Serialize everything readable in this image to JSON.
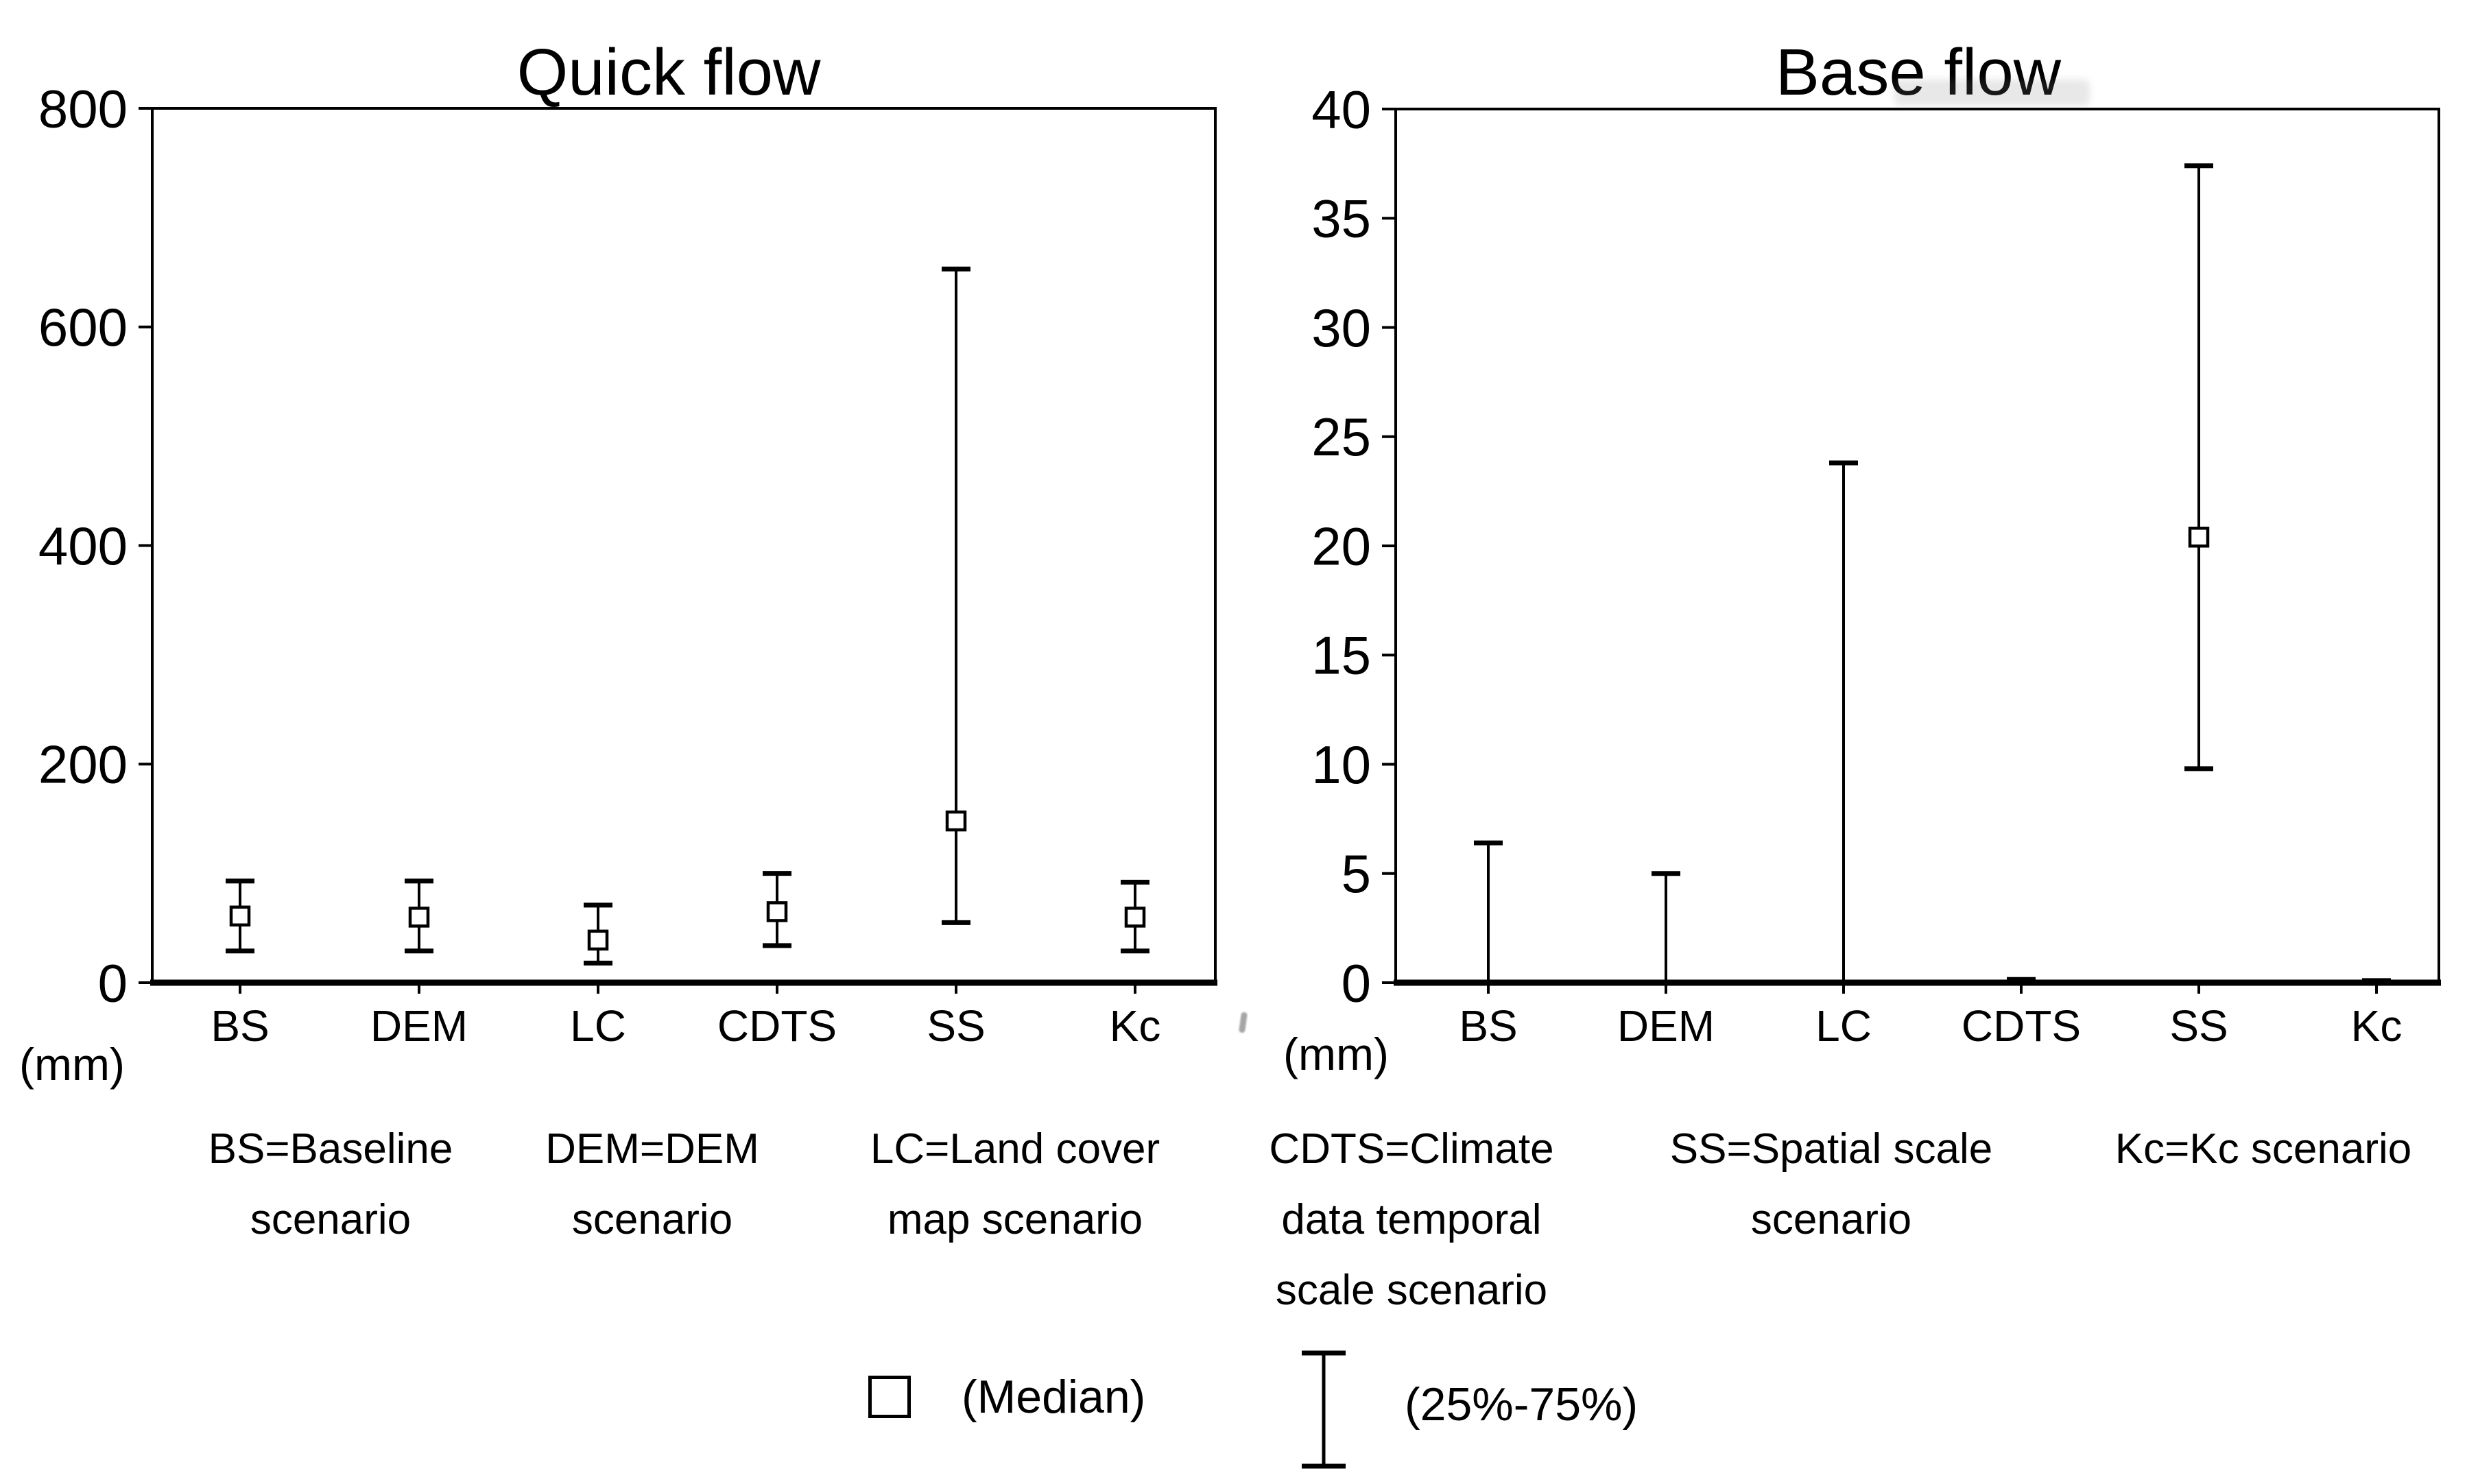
{
  "figure": {
    "background": "#ffffff",
    "ink": "#000000"
  },
  "chart_data": [
    {
      "type": "error-bar",
      "title": "Quick flow",
      "unit_label": "(mm)",
      "xlabel": "",
      "ylabel": "(mm)",
      "ylim": [
        0,
        800
      ],
      "yticks": [
        0,
        200,
        400,
        600,
        800
      ],
      "grid": false,
      "legend_position": "none",
      "categories": [
        "BS",
        "DEM",
        "LC",
        "CDTS",
        "SS",
        "Kc"
      ],
      "series": [
        {
          "name": "25th percentile",
          "values": [
            29,
            29,
            18,
            34,
            55,
            29
          ]
        },
        {
          "name": "median",
          "values": [
            61,
            60,
            39,
            65,
            148,
            60
          ]
        },
        {
          "name": "75th percentile",
          "values": [
            93,
            93,
            71,
            100,
            653,
            92
          ]
        }
      ]
    },
    {
      "type": "error-bar",
      "title": "Base flow",
      "unit_label": "(mm)",
      "xlabel": "",
      "ylabel": "(mm)",
      "ylim": [
        0,
        40
      ],
      "yticks": [
        0,
        5,
        10,
        15,
        20,
        25,
        30,
        35,
        40
      ],
      "grid": false,
      "legend_position": "none",
      "categories": [
        "BS",
        "DEM",
        "LC",
        "CDTS",
        "SS",
        "Kc"
      ],
      "series": [
        {
          "name": "25th percentile",
          "values": [
            0,
            0,
            0,
            0,
            9.8,
            0
          ]
        },
        {
          "name": "median",
          "values": [
            0,
            0,
            0,
            0,
            20.4,
            0
          ]
        },
        {
          "name": "75th percentile",
          "values": [
            6.4,
            5.0,
            23.8,
            0.15,
            37.4,
            0.1
          ]
        }
      ]
    }
  ],
  "legend": {
    "median_label": "(Median)",
    "range_label": "(25%-75%)"
  },
  "footnotes": [
    {
      "lines": [
        "BS=Baseline",
        "scenario"
      ]
    },
    {
      "lines": [
        "DEM=DEM",
        "scenario"
      ]
    },
    {
      "lines": [
        "LC=Land cover",
        "map scenario"
      ]
    },
    {
      "lines": [
        "CDTS=Climate",
        "data temporal",
        "scale scenario"
      ]
    },
    {
      "lines": [
        "SS=Spatial scale",
        "scenario"
      ]
    },
    {
      "lines": [
        "Kc=Kc scenario"
      ]
    }
  ]
}
